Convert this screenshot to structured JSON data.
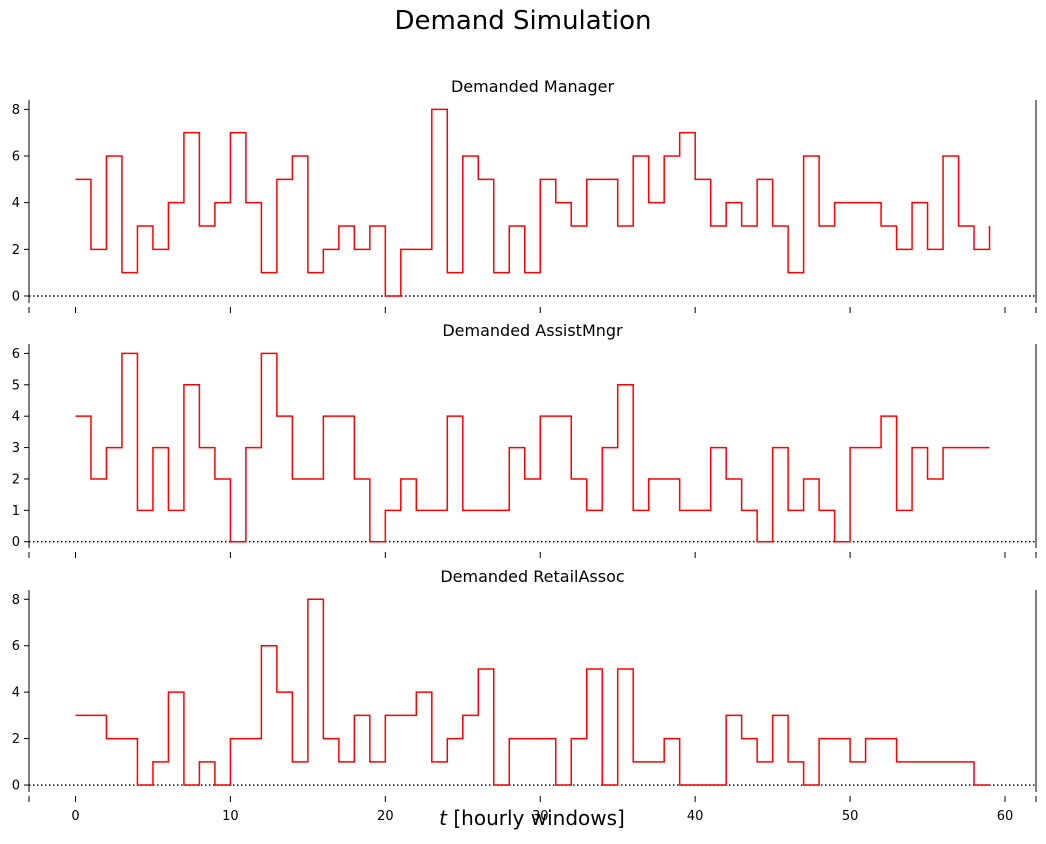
{
  "figure": {
    "suptitle": "Demand Simulation",
    "xlabel_var": "t",
    "xlabel_text": "[hourly windows]",
    "line_color": "#ff0000",
    "baseline_color": "#000000"
  },
  "chart_data": [
    {
      "type": "line",
      "drawstyle": "steps-post",
      "title": "Demanded Manager",
      "x": [
        0,
        1,
        2,
        3,
        4,
        5,
        6,
        7,
        8,
        9,
        10,
        11,
        12,
        13,
        14,
        15,
        16,
        17,
        18,
        19,
        20,
        21,
        22,
        23,
        24,
        25,
        26,
        27,
        28,
        29,
        30,
        31,
        32,
        33,
        34,
        35,
        36,
        37,
        38,
        39,
        40,
        41,
        42,
        43,
        44,
        45,
        46,
        47,
        48,
        49,
        50,
        51,
        52,
        53,
        54,
        55,
        56,
        57,
        58,
        59
      ],
      "values": [
        5,
        2,
        6,
        1,
        3,
        2,
        4,
        7,
        3,
        4,
        7,
        4,
        1,
        5,
        6,
        1,
        2,
        3,
        2,
        3,
        0,
        2,
        2,
        8,
        1,
        6,
        5,
        1,
        3,
        1,
        5,
        4,
        3,
        5,
        5,
        3,
        6,
        4,
        6,
        7,
        5,
        3,
        4,
        3,
        5,
        3,
        1,
        6,
        3,
        4,
        4,
        4,
        3,
        2,
        4,
        2,
        6,
        3,
        2,
        3
      ],
      "xlim": [
        -3,
        62
      ],
      "ylim": [
        -0.3,
        8.4
      ],
      "yticks": [
        0,
        2,
        4,
        6,
        8
      ],
      "xticks": [
        0,
        10,
        20,
        30,
        40,
        50,
        60
      ],
      "show_xticklabels": false,
      "baseline": 0
    },
    {
      "type": "line",
      "drawstyle": "steps-post",
      "title": "Demanded AssistMngr",
      "x": [
        0,
        1,
        2,
        3,
        4,
        5,
        6,
        7,
        8,
        9,
        10,
        11,
        12,
        13,
        14,
        15,
        16,
        17,
        18,
        19,
        20,
        21,
        22,
        23,
        24,
        25,
        26,
        27,
        28,
        29,
        30,
        31,
        32,
        33,
        34,
        35,
        36,
        37,
        38,
        39,
        40,
        41,
        42,
        43,
        44,
        45,
        46,
        47,
        48,
        49,
        50,
        51,
        52,
        53,
        54,
        55,
        56,
        57,
        58,
        59
      ],
      "values": [
        4,
        2,
        3,
        6,
        1,
        3,
        1,
        5,
        3,
        2,
        0,
        3,
        6,
        4,
        2,
        2,
        4,
        4,
        2,
        0,
        1,
        2,
        1,
        1,
        4,
        1,
        1,
        1,
        3,
        2,
        4,
        4,
        2,
        1,
        3,
        5,
        1,
        2,
        2,
        1,
        1,
        3,
        2,
        1,
        0,
        3,
        1,
        2,
        1,
        0,
        3,
        3,
        4,
        1,
        3,
        2,
        3,
        3,
        3,
        3
      ],
      "xlim": [
        -3,
        62
      ],
      "ylim": [
        -0.2,
        6.3
      ],
      "yticks": [
        0,
        1,
        2,
        3,
        4,
        5,
        6
      ],
      "xticks": [
        0,
        10,
        20,
        30,
        40,
        50,
        60
      ],
      "show_xticklabels": false,
      "baseline": 0
    },
    {
      "type": "line",
      "drawstyle": "steps-post",
      "title": "Demanded RetailAssoc",
      "x": [
        0,
        1,
        2,
        3,
        4,
        5,
        6,
        7,
        8,
        9,
        10,
        11,
        12,
        13,
        14,
        15,
        16,
        17,
        18,
        19,
        20,
        21,
        22,
        23,
        24,
        25,
        26,
        27,
        28,
        29,
        30,
        31,
        32,
        33,
        34,
        35,
        36,
        37,
        38,
        39,
        40,
        41,
        42,
        43,
        44,
        45,
        46,
        47,
        48,
        49,
        50,
        51,
        52,
        53,
        54,
        55,
        56,
        57,
        58,
        59
      ],
      "values": [
        3,
        3,
        2,
        2,
        0,
        1,
        4,
        0,
        1,
        0,
        2,
        2,
        6,
        4,
        1,
        8,
        2,
        1,
        3,
        1,
        3,
        3,
        4,
        1,
        2,
        3,
        5,
        0,
        2,
        2,
        2,
        0,
        2,
        5,
        0,
        5,
        1,
        1,
        2,
        0,
        0,
        0,
        3,
        2,
        1,
        3,
        1,
        0,
        2,
        2,
        1,
        2,
        2,
        1,
        1,
        1,
        1,
        1,
        0,
        0
      ],
      "xlim": [
        -3,
        62
      ],
      "ylim": [
        -0.3,
        8.4
      ],
      "yticks": [
        0,
        2,
        4,
        6,
        8
      ],
      "xticks": [
        0,
        10,
        20,
        30,
        40,
        50,
        60
      ],
      "show_xticklabels": true,
      "baseline": 0
    }
  ]
}
